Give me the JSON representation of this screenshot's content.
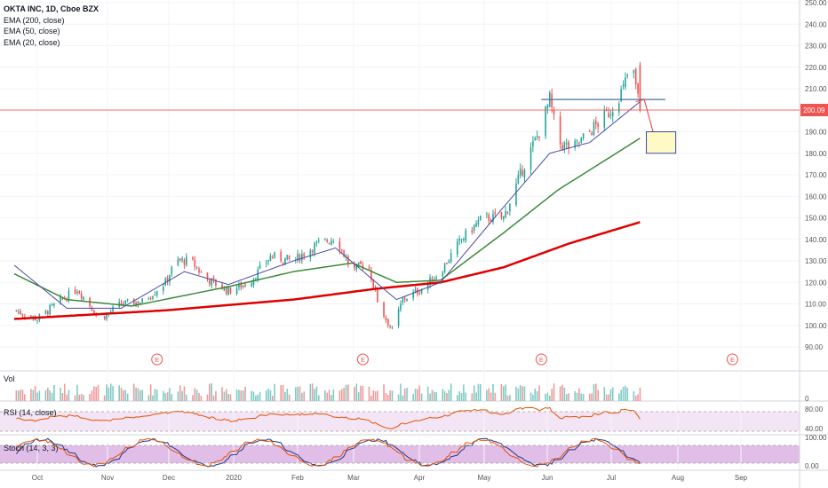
{
  "chart_data": {
    "type": "line",
    "title": "OKTA INC, 1D, Cboe BZX",
    "legend": [
      "EMA (200, close)",
      "EMA (50, close)",
      "EMA (20, close)"
    ],
    "price_axis": {
      "ticks": [
        90,
        100,
        110,
        120,
        130,
        140,
        150,
        160,
        170,
        180,
        190,
        200,
        210,
        220,
        230,
        240,
        250
      ],
      "ylim": [
        85,
        252
      ]
    },
    "time_axis": {
      "labels": [
        "Oct",
        "Nov",
        "Dec",
        "2020",
        "Feb",
        "Mar",
        "Apr",
        "May",
        "Jun",
        "Jul",
        "Aug",
        "Sep"
      ]
    },
    "last_price_label": "200.09",
    "last_price_color": "#ef5350",
    "up_color": "#26a69a",
    "down_color": "#ef5350",
    "ema200_color": "#e00000",
    "ema50_color": "#3a8a3a",
    "ema20_color": "#4b4ba6",
    "earnings_marker": "E",
    "earnings_markers_at": [
      "Nov-27",
      "Mar-04",
      "May-28",
      "Aug-27"
    ],
    "resistance_level": 205,
    "target_box": {
      "low": 180,
      "high": 190
    },
    "close_series_approx": [
      {
        "date": "Sep-20",
        "close": 107
      },
      {
        "date": "Oct-01",
        "close": 103
      },
      {
        "date": "Oct-10",
        "close": 110
      },
      {
        "date": "Oct-20",
        "close": 117
      },
      {
        "date": "Oct-31",
        "close": 103
      },
      {
        "date": "Nov-10",
        "close": 110
      },
      {
        "date": "Nov-20",
        "close": 111
      },
      {
        "date": "Dec-01",
        "close": 120
      },
      {
        "date": "Dec-06",
        "close": 130
      },
      {
        "date": "Dec-13",
        "close": 130
      },
      {
        "date": "Dec-20",
        "close": 122
      },
      {
        "date": "Dec-31",
        "close": 116
      },
      {
        "date": "Jan-10",
        "close": 120
      },
      {
        "date": "Jan-20",
        "close": 132
      },
      {
        "date": "Jan-31",
        "close": 130
      },
      {
        "date": "Feb-10",
        "close": 137
      },
      {
        "date": "Feb-20",
        "close": 141
      },
      {
        "date": "Feb-28",
        "close": 125
      },
      {
        "date": "Mar-06",
        "close": 130
      },
      {
        "date": "Mar-12",
        "close": 108
      },
      {
        "date": "Mar-18",
        "close": 98
      },
      {
        "date": "Mar-23",
        "close": 112
      },
      {
        "date": "Apr-01",
        "close": 117
      },
      {
        "date": "Apr-10",
        "close": 125
      },
      {
        "date": "Apr-20",
        "close": 140
      },
      {
        "date": "Apr-30",
        "close": 150
      },
      {
        "date": "May-10",
        "close": 150
      },
      {
        "date": "May-20",
        "close": 175
      },
      {
        "date": "May-27",
        "close": 190
      },
      {
        "date": "Jun-01",
        "close": 205
      },
      {
        "date": "Jun-05",
        "close": 185
      },
      {
        "date": "Jun-12",
        "close": 182
      },
      {
        "date": "Jun-20",
        "close": 190
      },
      {
        "date": "Jun-30",
        "close": 200
      },
      {
        "date": "Jul-06",
        "close": 210
      },
      {
        "date": "Jul-10",
        "close": 222
      },
      {
        "date": "Jul-14",
        "close": 200.09
      }
    ],
    "ema200_approx": [
      {
        "date": "Sep-20",
        "value": 103
      },
      {
        "date": "Dec-01",
        "value": 107
      },
      {
        "date": "Jan-31",
        "value": 112
      },
      {
        "date": "Mar-10",
        "value": 117
      },
      {
        "date": "Apr-10",
        "value": 120
      },
      {
        "date": "May-10",
        "value": 127
      },
      {
        "date": "Jun-10",
        "value": 138
      },
      {
        "date": "Jul-14",
        "value": 148
      }
    ],
    "ema50_approx": [
      {
        "date": "Sep-20",
        "value": 124
      },
      {
        "date": "Oct-15",
        "value": 112
      },
      {
        "date": "Nov-15",
        "value": 109
      },
      {
        "date": "Dec-31",
        "value": 118
      },
      {
        "date": "Jan-31",
        "value": 125
      },
      {
        "date": "Feb-28",
        "value": 129
      },
      {
        "date": "Mar-20",
        "value": 120
      },
      {
        "date": "Apr-10",
        "value": 121
      },
      {
        "date": "May-10",
        "value": 143
      },
      {
        "date": "Jun-05",
        "value": 163
      },
      {
        "date": "Jul-14",
        "value": 187
      }
    ],
    "ema20_approx": [
      {
        "date": "Sep-20",
        "value": 128
      },
      {
        "date": "Oct-15",
        "value": 108
      },
      {
        "date": "Nov-10",
        "value": 108
      },
      {
        "date": "Dec-10",
        "value": 125
      },
      {
        "date": "Dec-31",
        "value": 119
      },
      {
        "date": "Jan-31",
        "value": 130
      },
      {
        "date": "Feb-20",
        "value": 136
      },
      {
        "date": "Mar-20",
        "value": 112
      },
      {
        "date": "Apr-10",
        "value": 120
      },
      {
        "date": "May-10",
        "value": 155
      },
      {
        "date": "Jun-01",
        "value": 180
      },
      {
        "date": "Jun-20",
        "value": 185
      },
      {
        "date": "Jul-14",
        "value": 204
      }
    ],
    "volume": {
      "label": "Vol",
      "axis_ticks": [
        "0"
      ]
    },
    "rsi": {
      "label": "RSI (14, close)",
      "axis_ticks": [
        "80.00",
        "40.00"
      ],
      "upper": 70,
      "lower": 30
    },
    "stoch": {
      "label": "Stoch (14, 3, 3)",
      "axis_ticks": [
        "100.00",
        "0.00"
      ],
      "upper": 80,
      "lower": 20
    }
  }
}
